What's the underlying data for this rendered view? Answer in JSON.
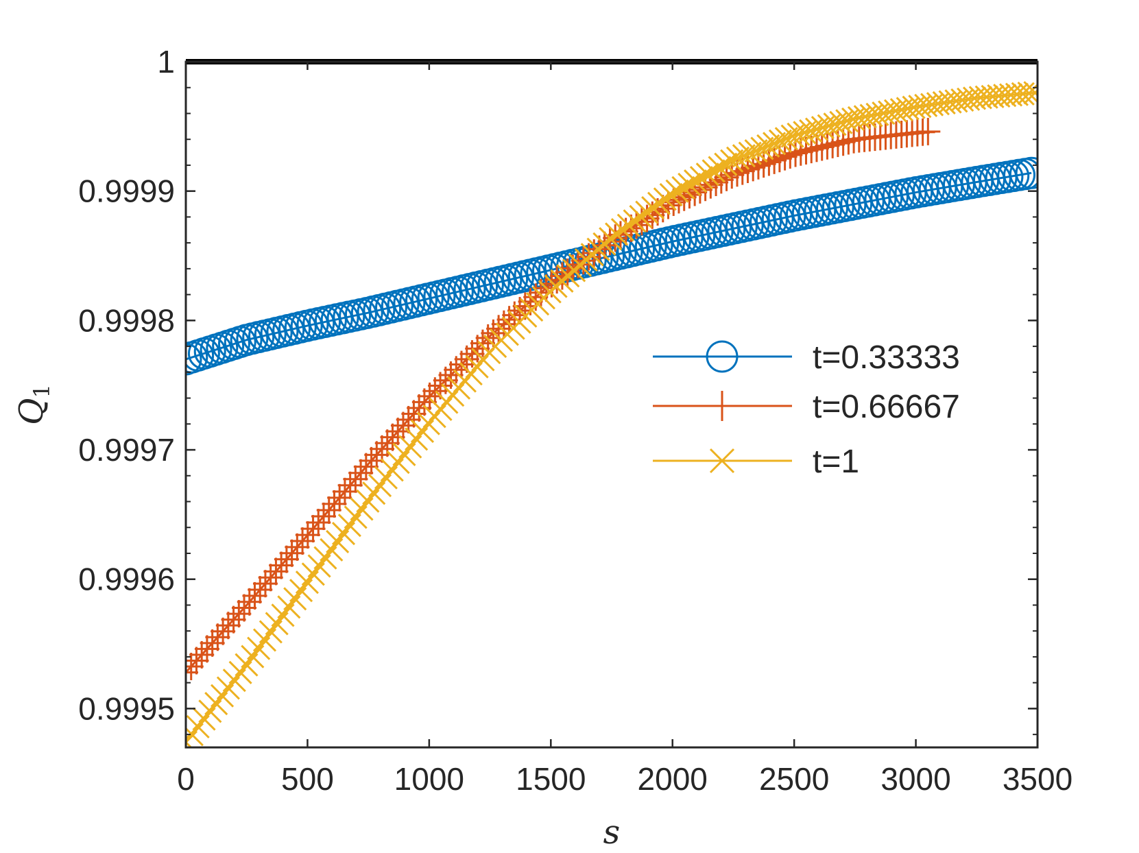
{
  "chart_data": {
    "type": "line",
    "title": "",
    "xlabel": "s",
    "ylabel": {
      "main": "Q",
      "subscript": "1"
    },
    "xlim": [
      0,
      3500
    ],
    "ylim": [
      0.99947,
      1.0
    ],
    "xticks": [
      0,
      500,
      1000,
      1500,
      2000,
      2500,
      3000,
      3500
    ],
    "xtick_labels": [
      "0",
      "500",
      "1000",
      "1500",
      "2000",
      "2500",
      "3000",
      "3500"
    ],
    "yticks": [
      0.9995,
      0.9996,
      0.9997,
      0.9998,
      0.9999,
      1.0
    ],
    "ytick_labels": [
      "0.9995",
      "0.9996",
      "0.9997",
      "0.9998",
      "0.9999",
      "1"
    ],
    "grid": false,
    "legend_position": "center-right",
    "reference_line": {
      "y": 1.0,
      "color": "#000000"
    },
    "series": [
      {
        "name": "t=0.33333",
        "color": "#0072BD",
        "marker": "circle",
        "x": [
          0,
          250,
          500,
          750,
          1000,
          1250,
          1500,
          1750,
          2000,
          2250,
          2500,
          2750,
          3000,
          3250,
          3475
        ],
        "y": [
          0.99977,
          0.999785,
          0.999796,
          0.999806,
          0.999817,
          0.999828,
          0.999839,
          0.99985,
          0.999861,
          0.999871,
          0.999881,
          0.99989,
          0.999899,
          0.999907,
          0.999914
        ]
      },
      {
        "name": "t=0.66667",
        "color": "#D95319",
        "marker": "plus",
        "x": [
          0,
          250,
          500,
          750,
          1000,
          1250,
          1500,
          1750,
          2000,
          2250,
          2500,
          2750,
          3000,
          3050
        ],
        "y": [
          0.999528,
          0.99958,
          0.999634,
          0.999689,
          0.999741,
          0.999788,
          0.999828,
          0.999862,
          0.999891,
          0.999913,
          0.999929,
          0.99994,
          0.999945,
          0.999946
        ]
      },
      {
        "name": "t=1",
        "color": "#EDB120",
        "marker": "x",
        "x": [
          0,
          250,
          500,
          750,
          1000,
          1250,
          1500,
          1750,
          2000,
          2250,
          2500,
          2750,
          3000,
          3250,
          3490
        ],
        "y": [
          0.999474,
          0.999534,
          0.999598,
          0.999661,
          0.999721,
          0.999776,
          0.999823,
          0.999864,
          0.999898,
          0.999924,
          0.999943,
          0.999956,
          0.999965,
          0.999972,
          0.999976
        ]
      }
    ]
  }
}
